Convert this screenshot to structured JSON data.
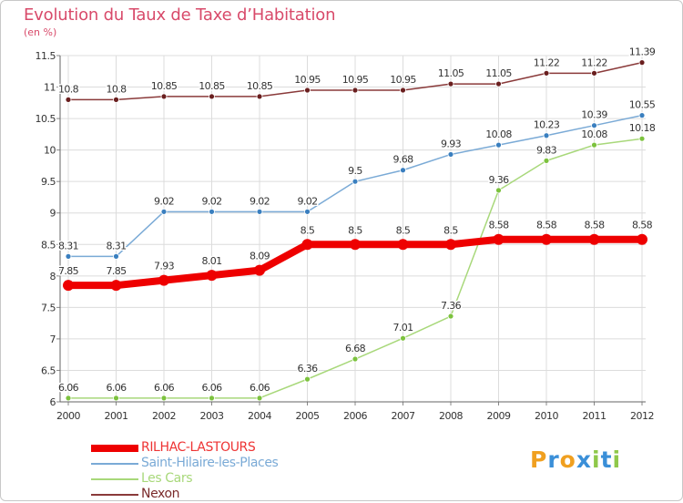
{
  "title": "Evolution du Taux de Taxe d’Habitation",
  "unit_label": "(en %)",
  "logo": {
    "letters": [
      "P",
      "r",
      "o",
      "x",
      "i",
      "t",
      "i"
    ],
    "colors": [
      "#f0a020",
      "#3a8fd8",
      "#f0a020",
      "#3a8fd8",
      "#8fc84a",
      "#3a8fd8",
      "#8fc84a"
    ]
  },
  "chart_data": {
    "type": "line",
    "title": "Evolution du Taux de Taxe d’Habitation",
    "ylabel": "(en %)",
    "xlabel": "",
    "ylim": [
      6,
      11.5
    ],
    "yticks": [
      "6",
      "6.5",
      "7",
      "7.5",
      "8",
      "8.5",
      "9",
      "9.5",
      "10",
      "10.5",
      "11",
      "11.5"
    ],
    "grid": true,
    "legend_position": "bottom-left",
    "x": [
      "2000",
      "2001",
      "2002",
      "2003",
      "2004",
      "2005",
      "2006",
      "2007",
      "2008",
      "2009",
      "2010",
      "2011",
      "2012"
    ],
    "series": [
      {
        "name": "RILHAC-LASTOURS",
        "color": "#ee0000",
        "marker_color": "#ee0000",
        "emphasis": "thick",
        "values": [
          7.85,
          7.85,
          7.93,
          8.01,
          8.09,
          8.5,
          8.5,
          8.5,
          8.5,
          8.58,
          8.58,
          8.58,
          8.58
        ],
        "labels": [
          "7.85",
          "7.85",
          "7.93",
          "8.01",
          "8.09",
          "8.5",
          "8.5",
          "8.5",
          "8.5",
          "8.58",
          "8.58",
          "8.58",
          "8.58"
        ]
      },
      {
        "name": "Saint-Hilaire-les-Places",
        "color": "#7aaad6",
        "marker_color": "#3a7fbf",
        "emphasis": "thin",
        "values": [
          8.31,
          8.31,
          9.02,
          9.02,
          9.02,
          9.02,
          9.5,
          9.68,
          9.93,
          10.08,
          10.23,
          10.39,
          10.55
        ],
        "labels": [
          "8.31",
          "8.31",
          "9.02",
          "9.02",
          "9.02",
          "9.02",
          "9.5",
          "9.68",
          "9.93",
          "10.08",
          "10.23",
          "10.39",
          "10.55"
        ]
      },
      {
        "name": "Les Cars",
        "color": "#a8d87a",
        "marker_color": "#7cc23e",
        "emphasis": "thin",
        "values": [
          6.06,
          6.06,
          6.06,
          6.06,
          6.06,
          6.36,
          6.68,
          7.01,
          7.36,
          9.36,
          9.83,
          10.08,
          10.18
        ],
        "labels": [
          "6.06",
          "6.06",
          "6.06",
          "6.06",
          "6.06",
          "6.36",
          "6.68",
          "7.01",
          "7.36",
          "9.36",
          "9.83",
          "10.08",
          "10.18"
        ]
      },
      {
        "name": "Nexon",
        "color": "#8a3a3a",
        "marker_color": "#6a1f1f",
        "emphasis": "thin",
        "values": [
          10.8,
          10.8,
          10.85,
          10.85,
          10.85,
          10.95,
          10.95,
          10.95,
          11.05,
          11.05,
          11.22,
          11.22,
          11.39
        ],
        "labels": [
          "10.8",
          "10.8",
          "10.85",
          "10.85",
          "10.85",
          "10.95",
          "10.95",
          "10.95",
          "11.05",
          "11.05",
          "11.22",
          "11.22",
          "11.39"
        ]
      }
    ]
  }
}
